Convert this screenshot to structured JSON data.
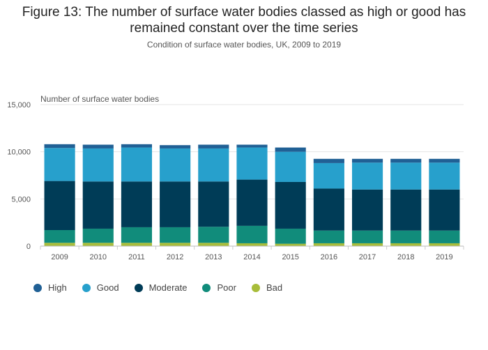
{
  "header": {
    "title": "Figure 13: The number of surface water bodies classed as high or good has remained constant over the time series",
    "subtitle": "Condition of surface water bodies, UK, 2009 to 2019"
  },
  "chart_data": {
    "type": "bar",
    "stacked": true,
    "ylabel": "Number of surface water bodies",
    "xlabel": "",
    "ylim": [
      0,
      15000
    ],
    "yticks": [
      0,
      5000,
      10000,
      15000
    ],
    "ytick_labels": [
      "0",
      "5,000",
      "10,000",
      "15,000"
    ],
    "grid": true,
    "legend_position": "bottom-left",
    "categories": [
      "2009",
      "2010",
      "2011",
      "2012",
      "2013",
      "2014",
      "2015",
      "2016",
      "2017",
      "2018",
      "2019"
    ],
    "series": [
      {
        "name": "Bad",
        "color": "#a8bd3a",
        "values": [
          350,
          350,
          350,
          350,
          350,
          300,
          250,
          300,
          300,
          300,
          300
        ]
      },
      {
        "name": "Poor",
        "color": "#118c7b",
        "values": [
          1350,
          1500,
          1650,
          1650,
          1700,
          1850,
          1600,
          1350,
          1350,
          1350,
          1350
        ]
      },
      {
        "name": "Moderate",
        "color": "#003c57",
        "values": [
          5200,
          5000,
          4850,
          4850,
          4800,
          4900,
          4950,
          4450,
          4350,
          4350,
          4350
        ]
      },
      {
        "name": "Good",
        "color": "#27a0cc",
        "values": [
          3500,
          3500,
          3600,
          3500,
          3500,
          3400,
          3200,
          2700,
          2850,
          2850,
          2850
        ]
      },
      {
        "name": "High",
        "color": "#206095",
        "values": [
          400,
          400,
          350,
          350,
          400,
          300,
          450,
          450,
          400,
          400,
          400
        ]
      }
    ],
    "legend_order": [
      "High",
      "Good",
      "Moderate",
      "Poor",
      "Bad"
    ]
  }
}
